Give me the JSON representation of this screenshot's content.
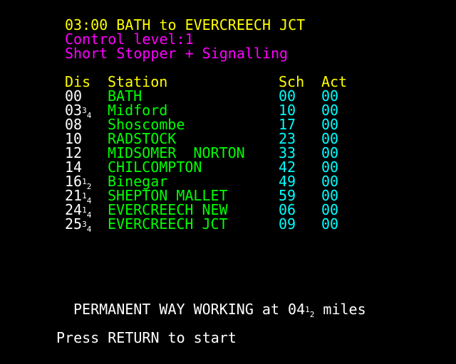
{
  "header": {
    "title": "03:00 BATH to EVERCREECH JCT",
    "control": "Control level:1",
    "mode": "Short Stopper + Signalling"
  },
  "table": {
    "headers": {
      "dis": "Dis",
      "station": "Station",
      "sch": "Sch",
      "act": "Act"
    },
    "rows": [
      {
        "dis": "00",
        "dis_frac_num": "",
        "dis_frac_den": "",
        "station": "BATH",
        "sch": "00",
        "act": "00"
      },
      {
        "dis": "03",
        "dis_frac_num": "3",
        "dis_frac_den": "4",
        "station": "Midford",
        "sch": "10",
        "act": "00"
      },
      {
        "dis": "08",
        "dis_frac_num": "",
        "dis_frac_den": "",
        "station": "Shoscombe",
        "sch": "17",
        "act": "00"
      },
      {
        "dis": "10",
        "dis_frac_num": "",
        "dis_frac_den": "",
        "station": "RADSTOCK",
        "sch": "23",
        "act": "00"
      },
      {
        "dis": "12",
        "dis_frac_num": "",
        "dis_frac_den": "",
        "station": "MIDSOMER  NORTON",
        "sch": "33",
        "act": "00"
      },
      {
        "dis": "14",
        "dis_frac_num": "",
        "dis_frac_den": "",
        "station": "CHILCOMPTON",
        "sch": "42",
        "act": "00"
      },
      {
        "dis": "16",
        "dis_frac_num": "1",
        "dis_frac_den": "2",
        "station": "Binegar",
        "sch": "49",
        "act": "00"
      },
      {
        "dis": "21",
        "dis_frac_num": "1",
        "dis_frac_den": "4",
        "station": "SHEPTON MALLET",
        "sch": "59",
        "act": "00"
      },
      {
        "dis": "24",
        "dis_frac_num": "1",
        "dis_frac_den": "4",
        "station": "EVERCREECH NEW",
        "sch": "06",
        "act": "00"
      },
      {
        "dis": "25",
        "dis_frac_num": "3",
        "dis_frac_den": "4",
        "station": "EVERCREECH JCT",
        "sch": "09",
        "act": "00"
      }
    ]
  },
  "notice": {
    "prefix": "PERMANENT WAY WORKING at 04",
    "frac_num": "1",
    "frac_den": "2",
    "suffix": " miles"
  },
  "prompt": "Press RETURN to start",
  "colors": {
    "background": "#000000",
    "title": "#ffff00",
    "subtitle": "#ff00ff",
    "station": "#00ff00",
    "times": "#00ffff",
    "text": "#ffffff"
  }
}
